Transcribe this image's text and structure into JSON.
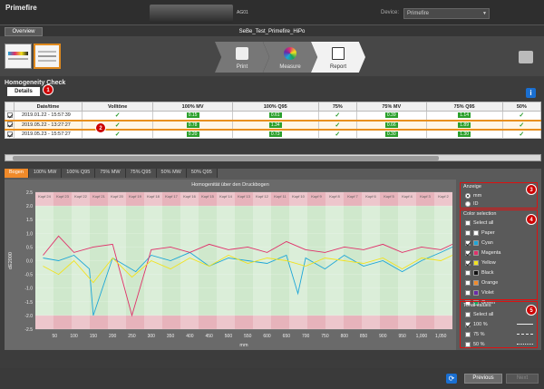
{
  "app": {
    "title": "Primefire"
  },
  "device": {
    "name": "AG01",
    "label": "Device:",
    "selected": "Primefire"
  },
  "nav": {
    "overview": "Overview"
  },
  "job": {
    "title": "SeBe_Test_Primefire_HiPo"
  },
  "steps": [
    {
      "label": "Print"
    },
    {
      "label": "Measure"
    },
    {
      "label": "Report"
    }
  ],
  "section": {
    "title": "Homogeneity Check",
    "details_tab": "Details"
  },
  "badges": [
    "1",
    "2",
    "3",
    "4",
    "5"
  ],
  "table": {
    "headers": [
      "Date/time",
      "Volltöne",
      "100% MV",
      "100% Q95",
      "75%",
      "75% MV",
      "75% Q95",
      "50%"
    ],
    "rows": [
      {
        "checked": true,
        "datetime": "2019.01.22 - 15:57:39",
        "v100mv": "0.15",
        "v100q95": "0.61",
        "v75mv": "0.39",
        "v75q95": "1.14",
        "selected": false
      },
      {
        "checked": true,
        "datetime": "2019.05.22 - 13:27:27",
        "v100mv": "0.78",
        "v100q95": "1.34",
        "v75mv": "0.66",
        "v75q95": "1.89",
        "selected": true
      },
      {
        "checked": true,
        "datetime": "2019.05.23 - 15:57:27",
        "v100mv": "0.20",
        "v100q95": "0.73",
        "v75mv": "0.30",
        "v75q95": "1.30",
        "selected": false
      }
    ]
  },
  "lower_tabs": [
    "Bogen",
    "100% MW",
    "100% Q95",
    "75% MW",
    "75% Q95",
    "50% MW",
    "50% Q95"
  ],
  "chart_data": {
    "type": "line",
    "title": "Homogenität über den Druckbogen",
    "xlabel": "mm",
    "ylabel": "dE2000",
    "xlim": [
      0,
      1080
    ],
    "ylim": [
      -2.5,
      2.5
    ],
    "x_ticks": [
      "50",
      "100",
      "150",
      "200",
      "250",
      "300",
      "350",
      "400",
      "450",
      "500",
      "550",
      "600",
      "650",
      "700",
      "750",
      "800",
      "850",
      "900",
      "950",
      "1,000",
      "1,050"
    ],
    "y_ticks": [
      "2.5",
      "2.0",
      "1.5",
      "1.0",
      "0.5",
      "0.0",
      "-0.5",
      "-1.0",
      "-1.5",
      "-2.0",
      "-2.5"
    ],
    "column_labels": [
      "Kopf 24",
      "Kopf 23",
      "Kopf 22",
      "Kopf 21",
      "Kopf 20",
      "Kopf 19",
      "Kopf 18",
      "Kopf 17",
      "Kopf 16",
      "Kopf 15",
      "Kopf 14",
      "Kopf 13",
      "Kopf 12",
      "Kopf 11",
      "Kopf 10",
      "Kopf 9",
      "Kopf 8",
      "Kopf 7",
      "Kopf 6",
      "Kopf 5",
      "Kopf 4",
      "Kopf 3",
      "Kopf 2"
    ],
    "series": [
      {
        "name": "Cyan",
        "color": "#1ca6d8",
        "x": [
          20,
          60,
          100,
          140,
          150,
          200,
          260,
          300,
          350,
          400,
          450,
          500,
          550,
          600,
          650,
          680,
          700,
          750,
          800,
          850,
          900,
          950,
          1000,
          1050,
          1080
        ],
        "y": [
          0.1,
          0.0,
          0.2,
          -0.3,
          -2.0,
          0.1,
          -0.4,
          0.2,
          0.0,
          0.3,
          -0.2,
          0.1,
          0.0,
          -0.1,
          0.2,
          -1.2,
          0.1,
          -0.3,
          0.2,
          -0.2,
          0.0,
          -0.4,
          0.0,
          0.3,
          0.5
        ]
      },
      {
        "name": "Magenta",
        "color": "#e0306a",
        "x": [
          20,
          60,
          100,
          150,
          200,
          250,
          300,
          350,
          400,
          450,
          500,
          550,
          600,
          650,
          700,
          750,
          800,
          850,
          900,
          950,
          1000,
          1050,
          1080
        ],
        "y": [
          0.2,
          0.9,
          0.3,
          0.5,
          0.6,
          -2.0,
          0.4,
          0.5,
          0.3,
          0.6,
          0.4,
          0.5,
          0.3,
          0.7,
          0.4,
          0.3,
          0.5,
          0.4,
          0.6,
          0.3,
          0.5,
          0.4,
          0.6
        ]
      },
      {
        "name": "Yellow",
        "color": "#f2e21e",
        "x": [
          20,
          60,
          100,
          150,
          200,
          250,
          300,
          350,
          400,
          450,
          500,
          550,
          600,
          650,
          700,
          750,
          800,
          850,
          900,
          950,
          1000,
          1050,
          1080
        ],
        "y": [
          -0.2,
          -0.5,
          0.0,
          -0.8,
          0.1,
          -0.6,
          0.0,
          -0.3,
          0.1,
          -0.2,
          0.2,
          -0.1,
          0.1,
          0.0,
          -0.2,
          0.1,
          0.0,
          -0.1,
          0.1,
          -0.3,
          0.1,
          0.0,
          0.2
        ]
      }
    ]
  },
  "anzeige": {
    "title": "Anzeige",
    "options": [
      {
        "label": "mm",
        "selected": true
      },
      {
        "label": "ID",
        "selected": false
      }
    ]
  },
  "color_selection": {
    "title": "Color selection",
    "items": [
      {
        "label": "Select all",
        "checked": false,
        "color": ""
      },
      {
        "label": "Paper",
        "checked": false,
        "color": "#ffffff"
      },
      {
        "label": "Cyan",
        "checked": true,
        "color": "#1ca6d8"
      },
      {
        "label": "Magenta",
        "checked": true,
        "color": "#e0306a"
      },
      {
        "label": "Yellow",
        "checked": true,
        "color": "#f2e21e"
      },
      {
        "label": "Black",
        "checked": false,
        "color": "#111111"
      },
      {
        "label": "Orange",
        "checked": false,
        "color": "#f08a2a"
      },
      {
        "label": "Violet",
        "checked": false,
        "color": "#6a2aa8"
      },
      {
        "label": "Green",
        "checked": false,
        "color": "#1aa05a"
      }
    ]
  },
  "tonal_values": {
    "title": "Tonal values",
    "items": [
      {
        "label": "Select all",
        "checked": false,
        "style": ""
      },
      {
        "label": "100 %",
        "checked": true,
        "style": "solid"
      },
      {
        "label": "75 %",
        "checked": false,
        "style": "dash"
      },
      {
        "label": "50 %",
        "checked": false,
        "style": "dot"
      }
    ]
  },
  "footer": {
    "previous": "Previous",
    "next": "Next",
    "refresh_icon": "⟳"
  }
}
